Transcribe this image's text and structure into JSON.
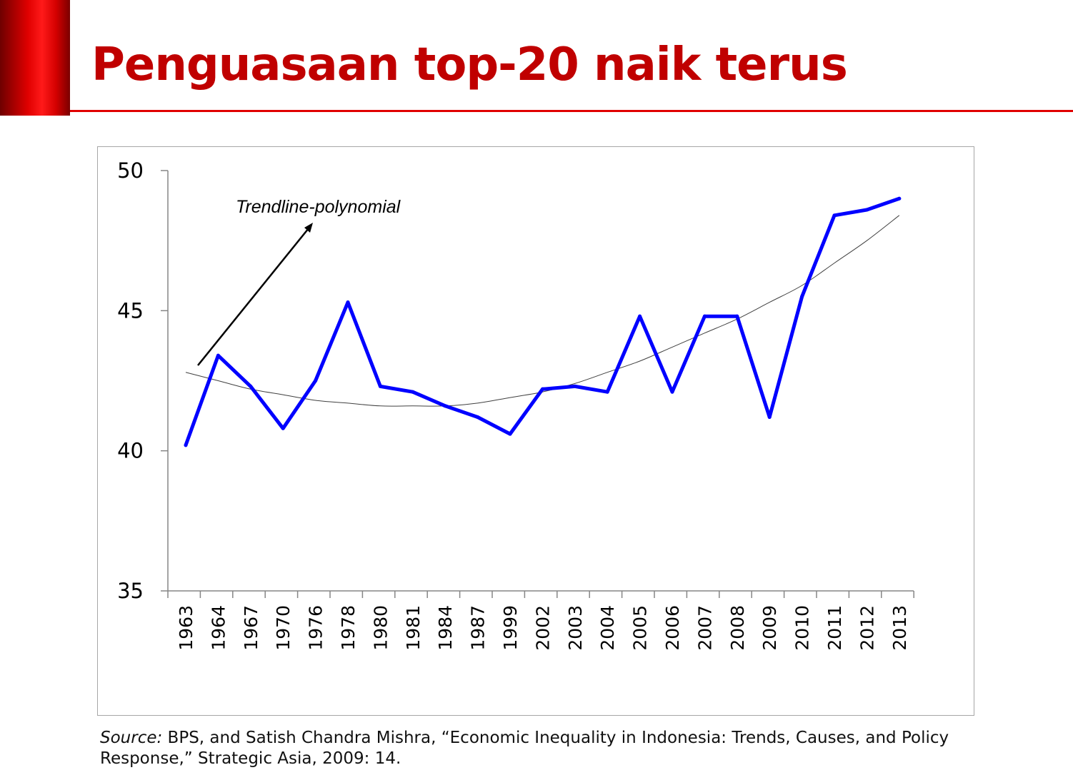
{
  "slide": {
    "title": "Penguasaan top-20 naik terus",
    "source_label": "Source:",
    "source_text": " BPS, and Satish Chandra Mishra, “Economic Inequality in Indonesia: Trends, Causes, and Policy Response,” Strategic Asia, 2009: 14."
  },
  "colors": {
    "title": "#c00000",
    "accent_bar": "#e00000",
    "series_line": "#0000ff",
    "trendline": "#404040"
  },
  "chart_data": {
    "type": "line",
    "categories": [
      "1963",
      "1964",
      "1967",
      "1970",
      "1976",
      "1978",
      "1980",
      "1981",
      "1984",
      "1987",
      "1999",
      "2002",
      "2003",
      "2004",
      "2005",
      "2006",
      "2007",
      "2008",
      "2009",
      "2010",
      "2011",
      "2012",
      "2013"
    ],
    "series": [
      {
        "values": [
          40.2,
          43.4,
          42.3,
          40.8,
          42.5,
          45.3,
          42.3,
          42.1,
          41.6,
          41.2,
          40.6,
          42.2,
          42.3,
          42.1,
          44.8,
          42.1,
          44.8,
          44.8,
          41.2,
          45.5,
          48.4,
          48.6,
          49.0
        ]
      }
    ],
    "trendline": {
      "label": "Trendline-polynomial",
      "values": [
        42.8,
        42.5,
        42.2,
        42.0,
        41.8,
        41.7,
        41.6,
        41.6,
        41.6,
        41.7,
        41.9,
        42.1,
        42.4,
        42.8,
        43.2,
        43.7,
        44.2,
        44.7,
        45.3,
        45.9,
        46.7,
        47.5,
        48.4
      ]
    },
    "xlabel": "",
    "ylabel": "",
    "ylim": [
      35,
      50
    ],
    "yticks": [
      "50",
      "45",
      "40",
      "35"
    ],
    "grid": false,
    "legend": "none"
  }
}
